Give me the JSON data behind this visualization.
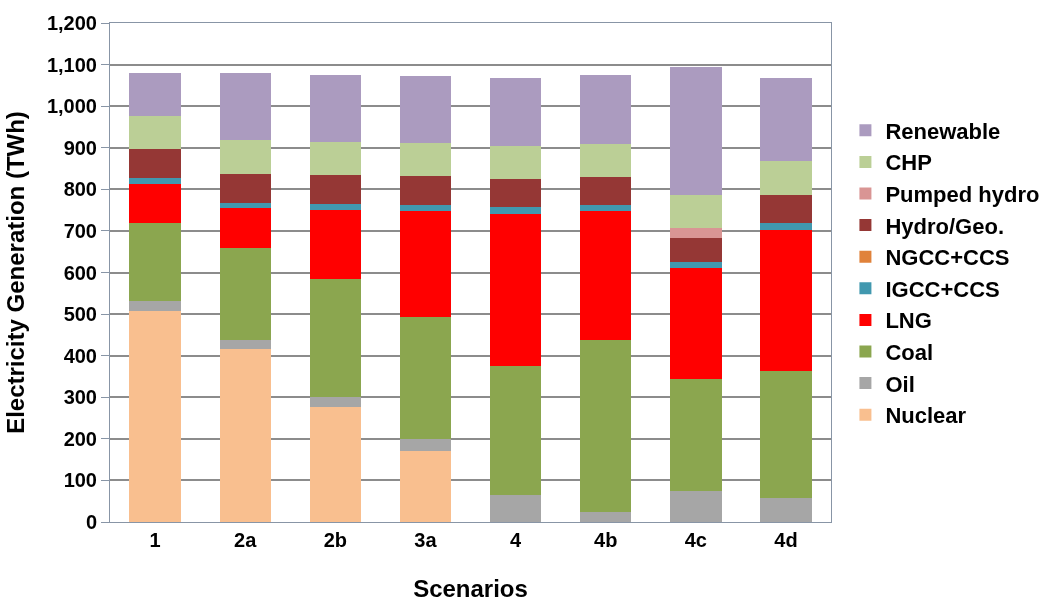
{
  "chart_data": {
    "type": "bar",
    "stacked": true,
    "xlabel": "Scenarios",
    "ylabel": "Electricity Generation (TWh)",
    "categories": [
      "1",
      "2a",
      "2b",
      "3a",
      "4",
      "4b",
      "4c",
      "4d"
    ],
    "series": [
      {
        "name": "Nuclear",
        "color": "#f9bf8f",
        "values": [
          508,
          415,
          276,
          171,
          0,
          0,
          0,
          0
        ]
      },
      {
        "name": "Oil",
        "color": "#a6a6a6",
        "values": [
          23,
          22,
          24,
          28,
          66,
          24,
          75,
          57
        ]
      },
      {
        "name": "Coal",
        "color": "#8ba64f",
        "values": [
          187,
          221,
          284,
          294,
          310,
          414,
          270,
          307
        ]
      },
      {
        "name": "LNG",
        "color": "#ff0000",
        "values": [
          96,
          98,
          166,
          254,
          365,
          309,
          265,
          339
        ]
      },
      {
        "name": "IGCC+CCS",
        "color": "#4198af",
        "values": [
          14,
          12,
          14,
          15,
          16,
          15,
          16,
          15
        ]
      },
      {
        "name": "NGCC+CCS",
        "color": "#e0823a",
        "values": [
          0,
          0,
          0,
          0,
          0,
          0,
          0,
          0
        ]
      },
      {
        "name": "Hydro/Geo.",
        "color": "#953735",
        "values": [
          69,
          68,
          70,
          69,
          68,
          68,
          57,
          68
        ]
      },
      {
        "name": "Pumped hydro",
        "color": "#d99594",
        "values": [
          0,
          0,
          0,
          0,
          0,
          0,
          23,
          0
        ]
      },
      {
        "name": "CHP",
        "color": "#bbcf96",
        "values": [
          80,
          83,
          80,
          80,
          80,
          80,
          81,
          81
        ]
      },
      {
        "name": "Renewable",
        "color": "#ab9bbf",
        "values": [
          102,
          160,
          162,
          162,
          163,
          164,
          308,
          201
        ]
      }
    ],
    "ylim": [
      0,
      1200
    ],
    "yticks": [
      {
        "value": 0,
        "label": "0"
      },
      {
        "value": 100,
        "label": "100"
      },
      {
        "value": 200,
        "label": "200"
      },
      {
        "value": 300,
        "label": "300"
      },
      {
        "value": 400,
        "label": "400"
      },
      {
        "value": 500,
        "label": "500"
      },
      {
        "value": 600,
        "label": "600"
      },
      {
        "value": 700,
        "label": "700"
      },
      {
        "value": 800,
        "label": "800"
      },
      {
        "value": 900,
        "label": "900"
      },
      {
        "value": 1000,
        "label": "1,000"
      },
      {
        "value": 1100,
        "label": "1,100"
      },
      {
        "value": 1200,
        "label": "1,200"
      }
    ],
    "grid": "y",
    "legend": "right"
  }
}
